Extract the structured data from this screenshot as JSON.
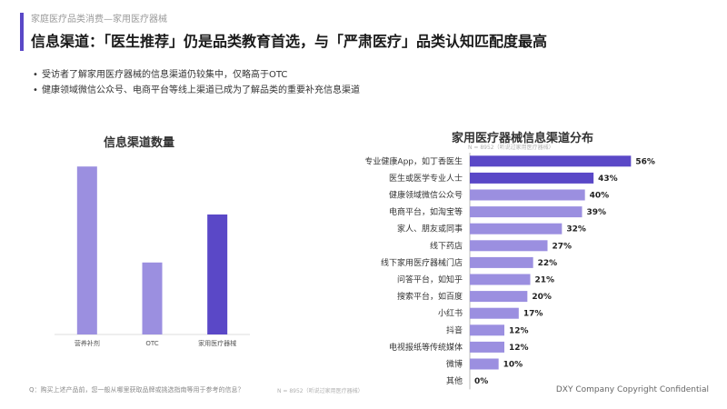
{
  "header": {
    "breadcrumb": "家庭医疗品类消费—家用医疗器械",
    "title": "信息渠道：「医生推荐」仍是品类教育首选，与「严肃医疗」品类认知匹配度最高"
  },
  "bullets": [
    "受访者了解家用医疗器械的信息渠道仍较集中，仅略高于OTC",
    "健康领域微信公众号、电商平台等线上渠道已成为了解品类的重要补充信息渠道"
  ],
  "colors": {
    "accent": "#5a48c7",
    "bar_light": "#9b8fe0",
    "bar_dark": "#5a48c7"
  },
  "chart_data": [
    {
      "type": "bar",
      "title": "信息渠道数量",
      "categories": [
        "营养补剂",
        "OTC",
        "家用医疗器械"
      ],
      "values": [
        4.2,
        1.8,
        3.0
      ],
      "ylim": [
        0,
        5
      ],
      "grid": false,
      "highlight_index": 2
    },
    {
      "type": "bar",
      "orientation": "horizontal",
      "title": "家用医疗器械信息渠道分布",
      "note": "N = 8952（听说过家用医疗器械）",
      "categories": [
        "专业健康App，如丁香医生",
        "医生或医学专业人士",
        "健康领域微信公众号",
        "电商平台，如淘宝等",
        "家人、朋友或同事",
        "线下药店",
        "线下家用医疗器械门店",
        "问答平台，如知乎",
        "搜索平台，如百度",
        "小红书",
        "抖音",
        "电视报纸等传统媒体",
        "微博",
        "其他"
      ],
      "values": [
        56,
        43,
        40,
        39,
        32,
        27,
        22,
        21,
        20,
        17,
        12,
        12,
        10,
        0
      ],
      "value_labels": [
        "56%",
        "43%",
        "40%",
        "39%",
        "32%",
        "27%",
        "22%",
        "21%",
        "20%",
        "17%",
        "12%",
        "12%",
        "10%",
        "0%"
      ],
      "xlim": [
        0,
        60
      ],
      "highlight_indices": [
        0,
        1
      ]
    }
  ],
  "footer": {
    "question": "Q：购买上述产品前，您一般从哪里获取品牌或挑选指南等用于参考的信息？",
    "note": "N = 8952（听说过家用医疗器械）",
    "copyright": "DXY Company Copyright Confidential"
  }
}
